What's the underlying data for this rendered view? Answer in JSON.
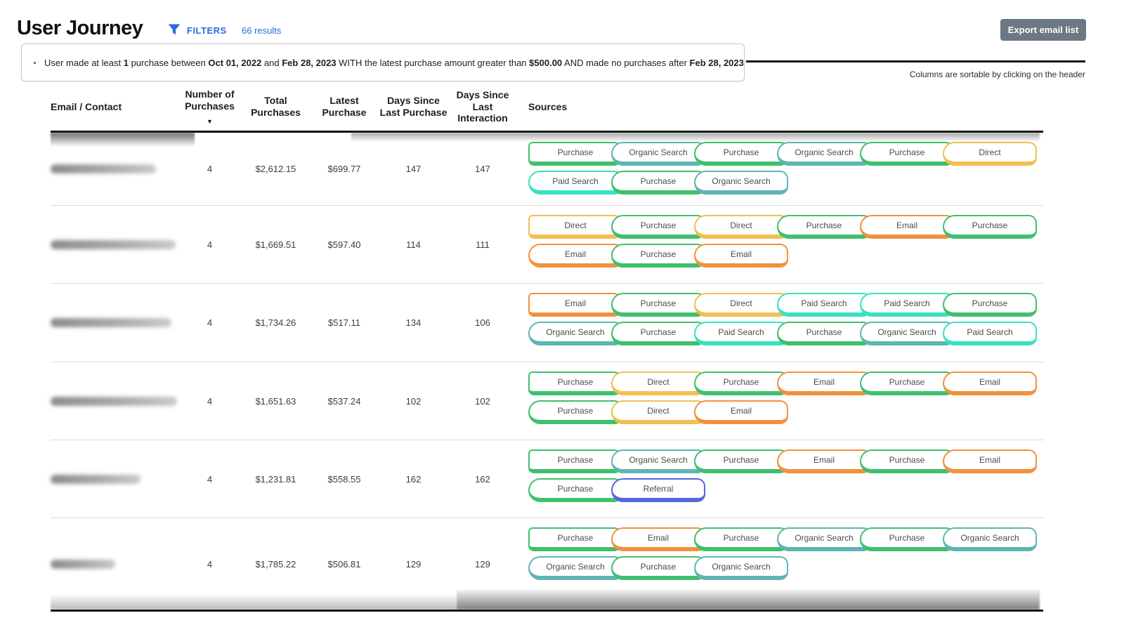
{
  "header": {
    "title": "User Journey",
    "filters_button": "FILTERS",
    "results_count": "66 results",
    "export_button": "Export email list",
    "sortable_hint": "Columns are sortable by clicking on the header"
  },
  "filter_summary": {
    "segments": [
      {
        "text": "User made at least ",
        "bold": false
      },
      {
        "text": "1",
        "bold": true
      },
      {
        "text": " purchase between ",
        "bold": false
      },
      {
        "text": "Oct 01, 2022",
        "bold": true
      },
      {
        "text": " and ",
        "bold": false
      },
      {
        "text": "Feb 28, 2023",
        "bold": true
      },
      {
        "text": " WITH the latest purchase amount greater than ",
        "bold": false
      },
      {
        "text": "$500.00",
        "bold": true
      },
      {
        "text": " AND made no purchases after ",
        "bold": false
      },
      {
        "text": "Feb 28, 2023",
        "bold": true
      }
    ]
  },
  "table": {
    "columns": [
      {
        "label": "Email / Contact",
        "sorted": false
      },
      {
        "label": "Number of Purchases",
        "sorted": true
      },
      {
        "label": "Total Purchases",
        "sorted": false
      },
      {
        "label": "Latest Purchase",
        "sorted": false
      },
      {
        "label": "Days Since Last Purchase",
        "sorted": false
      },
      {
        "label": "Days Since Last Interaction",
        "sorted": false
      },
      {
        "label": "Sources",
        "sorted": false
      }
    ],
    "sort_indicator": "▼",
    "rows": [
      {
        "email_redacted": true,
        "purchases": "4",
        "total_purchases": "$2,612.15",
        "latest_purchase": "$699.77",
        "days_since_last_purchase": "147",
        "days_since_last_interaction": "147",
        "sources": [
          [
            "Purchase",
            "Organic Search",
            "Purchase",
            "Organic Search",
            "Purchase",
            "Direct"
          ],
          [
            "Paid Search",
            "Purchase",
            "Organic Search"
          ]
        ]
      },
      {
        "email_redacted": true,
        "purchases": "4",
        "total_purchases": "$1,669.51",
        "latest_purchase": "$597.40",
        "days_since_last_purchase": "114",
        "days_since_last_interaction": "111",
        "sources": [
          [
            "Direct",
            "Purchase",
            "Direct",
            "Purchase",
            "Email",
            "Purchase"
          ],
          [
            "Email",
            "Purchase",
            "Email"
          ]
        ]
      },
      {
        "email_redacted": true,
        "purchases": "4",
        "total_purchases": "$1,734.26",
        "latest_purchase": "$517.11",
        "days_since_last_purchase": "134",
        "days_since_last_interaction": "106",
        "sources": [
          [
            "Email",
            "Purchase",
            "Direct",
            "Paid Search",
            "Paid Search",
            "Purchase"
          ],
          [
            "Organic Search",
            "Purchase",
            "Paid Search",
            "Purchase",
            "Organic Search",
            "Paid Search"
          ]
        ]
      },
      {
        "email_redacted": true,
        "purchases": "4",
        "total_purchases": "$1,651.63",
        "latest_purchase": "$537.24",
        "days_since_last_purchase": "102",
        "days_since_last_interaction": "102",
        "sources": [
          [
            "Purchase",
            "Direct",
            "Purchase",
            "Email",
            "Purchase",
            "Email"
          ],
          [
            "Purchase",
            "Direct",
            "Email"
          ]
        ]
      },
      {
        "email_redacted": true,
        "purchases": "4",
        "total_purchases": "$1,231.81",
        "latest_purchase": "$558.55",
        "days_since_last_purchase": "162",
        "days_since_last_interaction": "162",
        "sources": [
          [
            "Purchase",
            "Organic Search",
            "Purchase",
            "Email",
            "Purchase",
            "Email"
          ],
          [
            "Purchase",
            "Referral"
          ]
        ]
      },
      {
        "email_redacted": true,
        "purchases": "4",
        "total_purchases": "$1,785.22",
        "latest_purchase": "$506.81",
        "days_since_last_purchase": "129",
        "days_since_last_interaction": "129",
        "sources": [
          [
            "Purchase",
            "Email",
            "Purchase",
            "Organic Search",
            "Purchase",
            "Organic Search"
          ],
          [
            "Organic Search",
            "Purchase",
            "Organic Search"
          ]
        ]
      }
    ]
  },
  "source_types": {
    "Purchase": "#3fc06e",
    "Organic Search": "#5fb5b1",
    "Paid Search": "#38e2c1",
    "Direct": "#f0c050",
    "Email": "#f2913d",
    "Referral": "#5566dd"
  },
  "accent_colors": {
    "link_blue": "#2a6bdf",
    "export_gray": "#6d7884"
  }
}
